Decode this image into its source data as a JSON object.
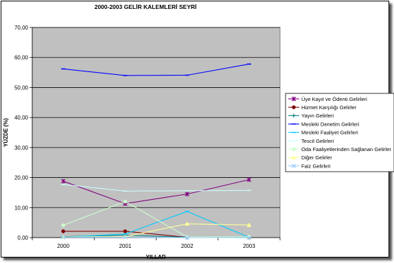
{
  "chart_data": {
    "type": "line",
    "title": "2000-2003 GELİR KALEMLERİ SEYRİ",
    "xlabel": "YILLAR",
    "ylabel": "YÜZDE (%)",
    "ylim": [
      0,
      70
    ],
    "y_ticks": [
      "0,00",
      "10,00",
      "20,00",
      "30,00",
      "40,00",
      "50,00",
      "60,00",
      "70,00"
    ],
    "categories": [
      "2000",
      "2001",
      "2002",
      "2003"
    ],
    "grid": true,
    "legend_position": "right",
    "series": [
      {
        "name": "Üye Kayıt ve Ödenti Gelirleri",
        "color": "#800080",
        "marker": "x-star",
        "values": [
          18.8,
          11.3,
          14.5,
          19.3
        ]
      },
      {
        "name": "Hizmet Karşılığı Gelirler",
        "color": "#800000",
        "marker": "circle",
        "values": [
          2.1,
          2.1,
          0.1,
          0.1
        ]
      },
      {
        "name": "Yayın Gelirleri",
        "color": "#008080",
        "marker": "plus",
        "values": [
          0.3,
          0.8,
          0.1,
          0.1
        ]
      },
      {
        "name": "Mesleki Denetim Gelirleri",
        "color": "#0000ff",
        "marker": "dash",
        "values": [
          56.2,
          54.0,
          54.1,
          57.8
        ]
      },
      {
        "name": "Mesleki Faaliyet Gelirleri",
        "color": "#00ccff",
        "marker": "dash",
        "values": [
          0.1,
          1.2,
          8.7,
          0.1
        ]
      },
      {
        "name": "Tescil Gelirleri",
        "color": "#ccffff",
        "marker": "dash",
        "values": [
          17.7,
          15.5,
          15.6,
          15.7
        ]
      },
      {
        "name": "Oda Faaliyetlerinden Sağlanan Gelirler",
        "color": "#ccffcc",
        "marker": "circle",
        "values": [
          4.1,
          12.0,
          0.2,
          0.3
        ]
      },
      {
        "name": "Diğer Gelirler",
        "color": "#ffff99",
        "marker": "triangle",
        "values": [
          0.2,
          0.3,
          4.6,
          4.2
        ]
      },
      {
        "name": "Faiz Gelirleri",
        "color": "#99ccff",
        "marker": "x",
        "values": [
          0.1,
          0.1,
          0.0,
          0.0
        ]
      }
    ]
  }
}
